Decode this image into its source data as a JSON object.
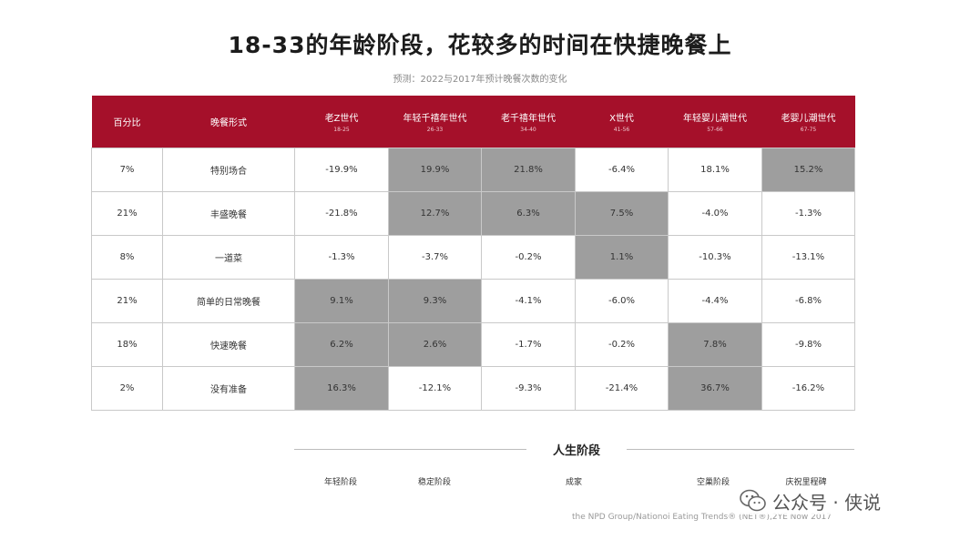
{
  "title": "18-33的年龄阶段，花较多的时间在快捷晚餐上",
  "subtitle": "预测：2022与2017年预计晚餐次数的变化",
  "chart_data": {
    "type": "table",
    "columns": [
      {
        "label": "百分比"
      },
      {
        "label": "晚餐形式"
      },
      {
        "label": "老Z世代",
        "ages": "18-25"
      },
      {
        "label": "年轻千禧年世代",
        "ages": "26-33"
      },
      {
        "label": "老千禧年世代",
        "ages": "34-40"
      },
      {
        "label": "X世代",
        "ages": "41-56"
      },
      {
        "label": "年轻婴儿潮世代",
        "ages": "57-66"
      },
      {
        "label": "老婴儿潮世代",
        "ages": "67-75"
      }
    ],
    "rows": [
      {
        "percent": "7%",
        "type": "特别场合",
        "values": [
          "-19.9%",
          "19.9%",
          "21.8%",
          "-6.4%",
          "18.1%",
          "15.2%"
        ],
        "highlight": [
          false,
          true,
          true,
          false,
          false,
          true
        ]
      },
      {
        "percent": "21%",
        "type": "丰盛晚餐",
        "values": [
          "-21.8%",
          "12.7%",
          "6.3%",
          "7.5%",
          "-4.0%",
          "-1.3%"
        ],
        "highlight": [
          false,
          true,
          true,
          true,
          false,
          false
        ]
      },
      {
        "percent": "8%",
        "type": "一道菜",
        "values": [
          "-1.3%",
          "-3.7%",
          "-0.2%",
          "1.1%",
          "-10.3%",
          "-13.1%"
        ],
        "highlight": [
          false,
          false,
          false,
          true,
          false,
          false
        ]
      },
      {
        "percent": "21%",
        "type": "简单的日常晚餐",
        "values": [
          "9.1%",
          "9.3%",
          "-4.1%",
          "-6.0%",
          "-4.4%",
          "-6.8%"
        ],
        "highlight": [
          true,
          true,
          false,
          false,
          false,
          false
        ]
      },
      {
        "percent": "18%",
        "type": "快速晚餐",
        "values": [
          "6.2%",
          "2.6%",
          "-1.7%",
          "-0.2%",
          "7.8%",
          "-9.8%"
        ],
        "highlight": [
          true,
          true,
          false,
          false,
          true,
          false
        ]
      },
      {
        "percent": "2%",
        "type": "没有准备",
        "values": [
          "16.3%",
          "-12.1%",
          "-9.3%",
          "-21.4%",
          "36.7%",
          "-16.2%"
        ],
        "highlight": [
          true,
          false,
          false,
          false,
          true,
          false
        ]
      }
    ],
    "header_color": "#a5102a",
    "highlight_color": "#9e9e9e"
  },
  "life_stage": {
    "title": "人生阶段",
    "stages": [
      "年轻阶段",
      "稳定阶段",
      "成家",
      "空巢阶段",
      "庆祝里程碑"
    ]
  },
  "source": "the NPD Group/Nationoi Eating Trends® (NET®),2YE Now 2017",
  "watermark": "公众号 · 侠说"
}
